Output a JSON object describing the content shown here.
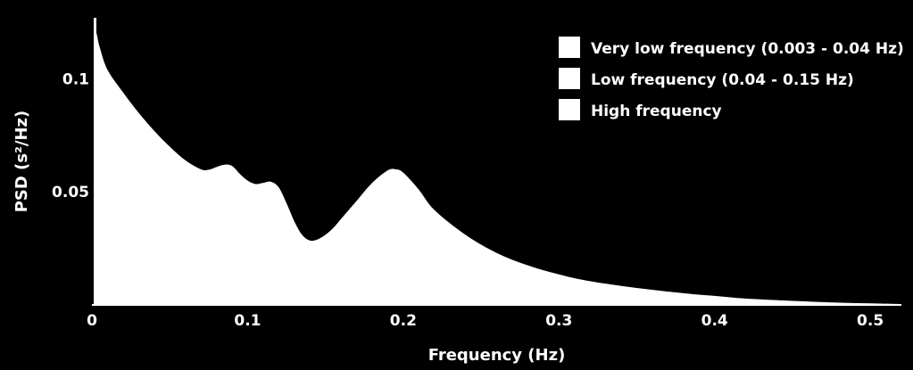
{
  "chart_data": {
    "type": "area",
    "title": "",
    "xlabel": "Frequency (Hz)",
    "ylabel": "PSD (s²/Hz)",
    "xlim": [
      0,
      0.52
    ],
    "ylim": [
      0,
      0.127
    ],
    "x_ticks": [
      0,
      0.1,
      0.2,
      0.3,
      0.4,
      0.5
    ],
    "x_tick_labels": [
      "0",
      "0.1",
      "0.2",
      "0.3",
      "0.4",
      "0.5"
    ],
    "y_ticks": [
      0.05,
      0.1
    ],
    "y_tick_labels": [
      "0.05",
      "0.1"
    ],
    "grid": false,
    "legend_position": "top-right",
    "legend": [
      {
        "label": "Very low frequency (0.003 - 0.04 Hz)",
        "color": "#ffffff"
      },
      {
        "label": "Low frequency (0.04 - 0.15 Hz)",
        "color": "#ffffff"
      },
      {
        "label": "High frequency",
        "color": "#ffffff"
      }
    ],
    "series": [
      {
        "x": [
          0.002,
          0.003,
          0.005,
          0.01,
          0.02,
          0.03,
          0.04,
          0.05,
          0.06,
          0.07,
          0.075,
          0.08,
          0.085,
          0.09,
          0.095,
          0.1,
          0.105,
          0.11,
          0.115,
          0.12,
          0.125,
          0.13,
          0.135,
          0.14,
          0.145,
          0.15,
          0.155,
          0.16,
          0.17,
          0.18,
          0.19,
          0.195,
          0.2,
          0.21,
          0.22,
          0.24,
          0.26,
          0.28,
          0.3,
          0.32,
          0.35,
          0.38,
          0.4,
          0.42,
          0.45,
          0.48,
          0.5,
          0.52
        ],
        "y": [
          0.12,
          0.12,
          0.114,
          0.104,
          0.094,
          0.085,
          0.077,
          0.07,
          0.064,
          0.06,
          0.0598,
          0.061,
          0.062,
          0.0615,
          0.058,
          0.055,
          0.0535,
          0.054,
          0.0545,
          0.052,
          0.045,
          0.037,
          0.031,
          0.0285,
          0.029,
          0.031,
          0.034,
          0.038,
          0.046,
          0.054,
          0.0595,
          0.06,
          0.0585,
          0.051,
          0.042,
          0.031,
          0.023,
          0.0175,
          0.0135,
          0.0105,
          0.0075,
          0.0052,
          0.004,
          0.0028,
          0.0018,
          0.001,
          0.0007,
          0.0004
        ]
      }
    ]
  }
}
